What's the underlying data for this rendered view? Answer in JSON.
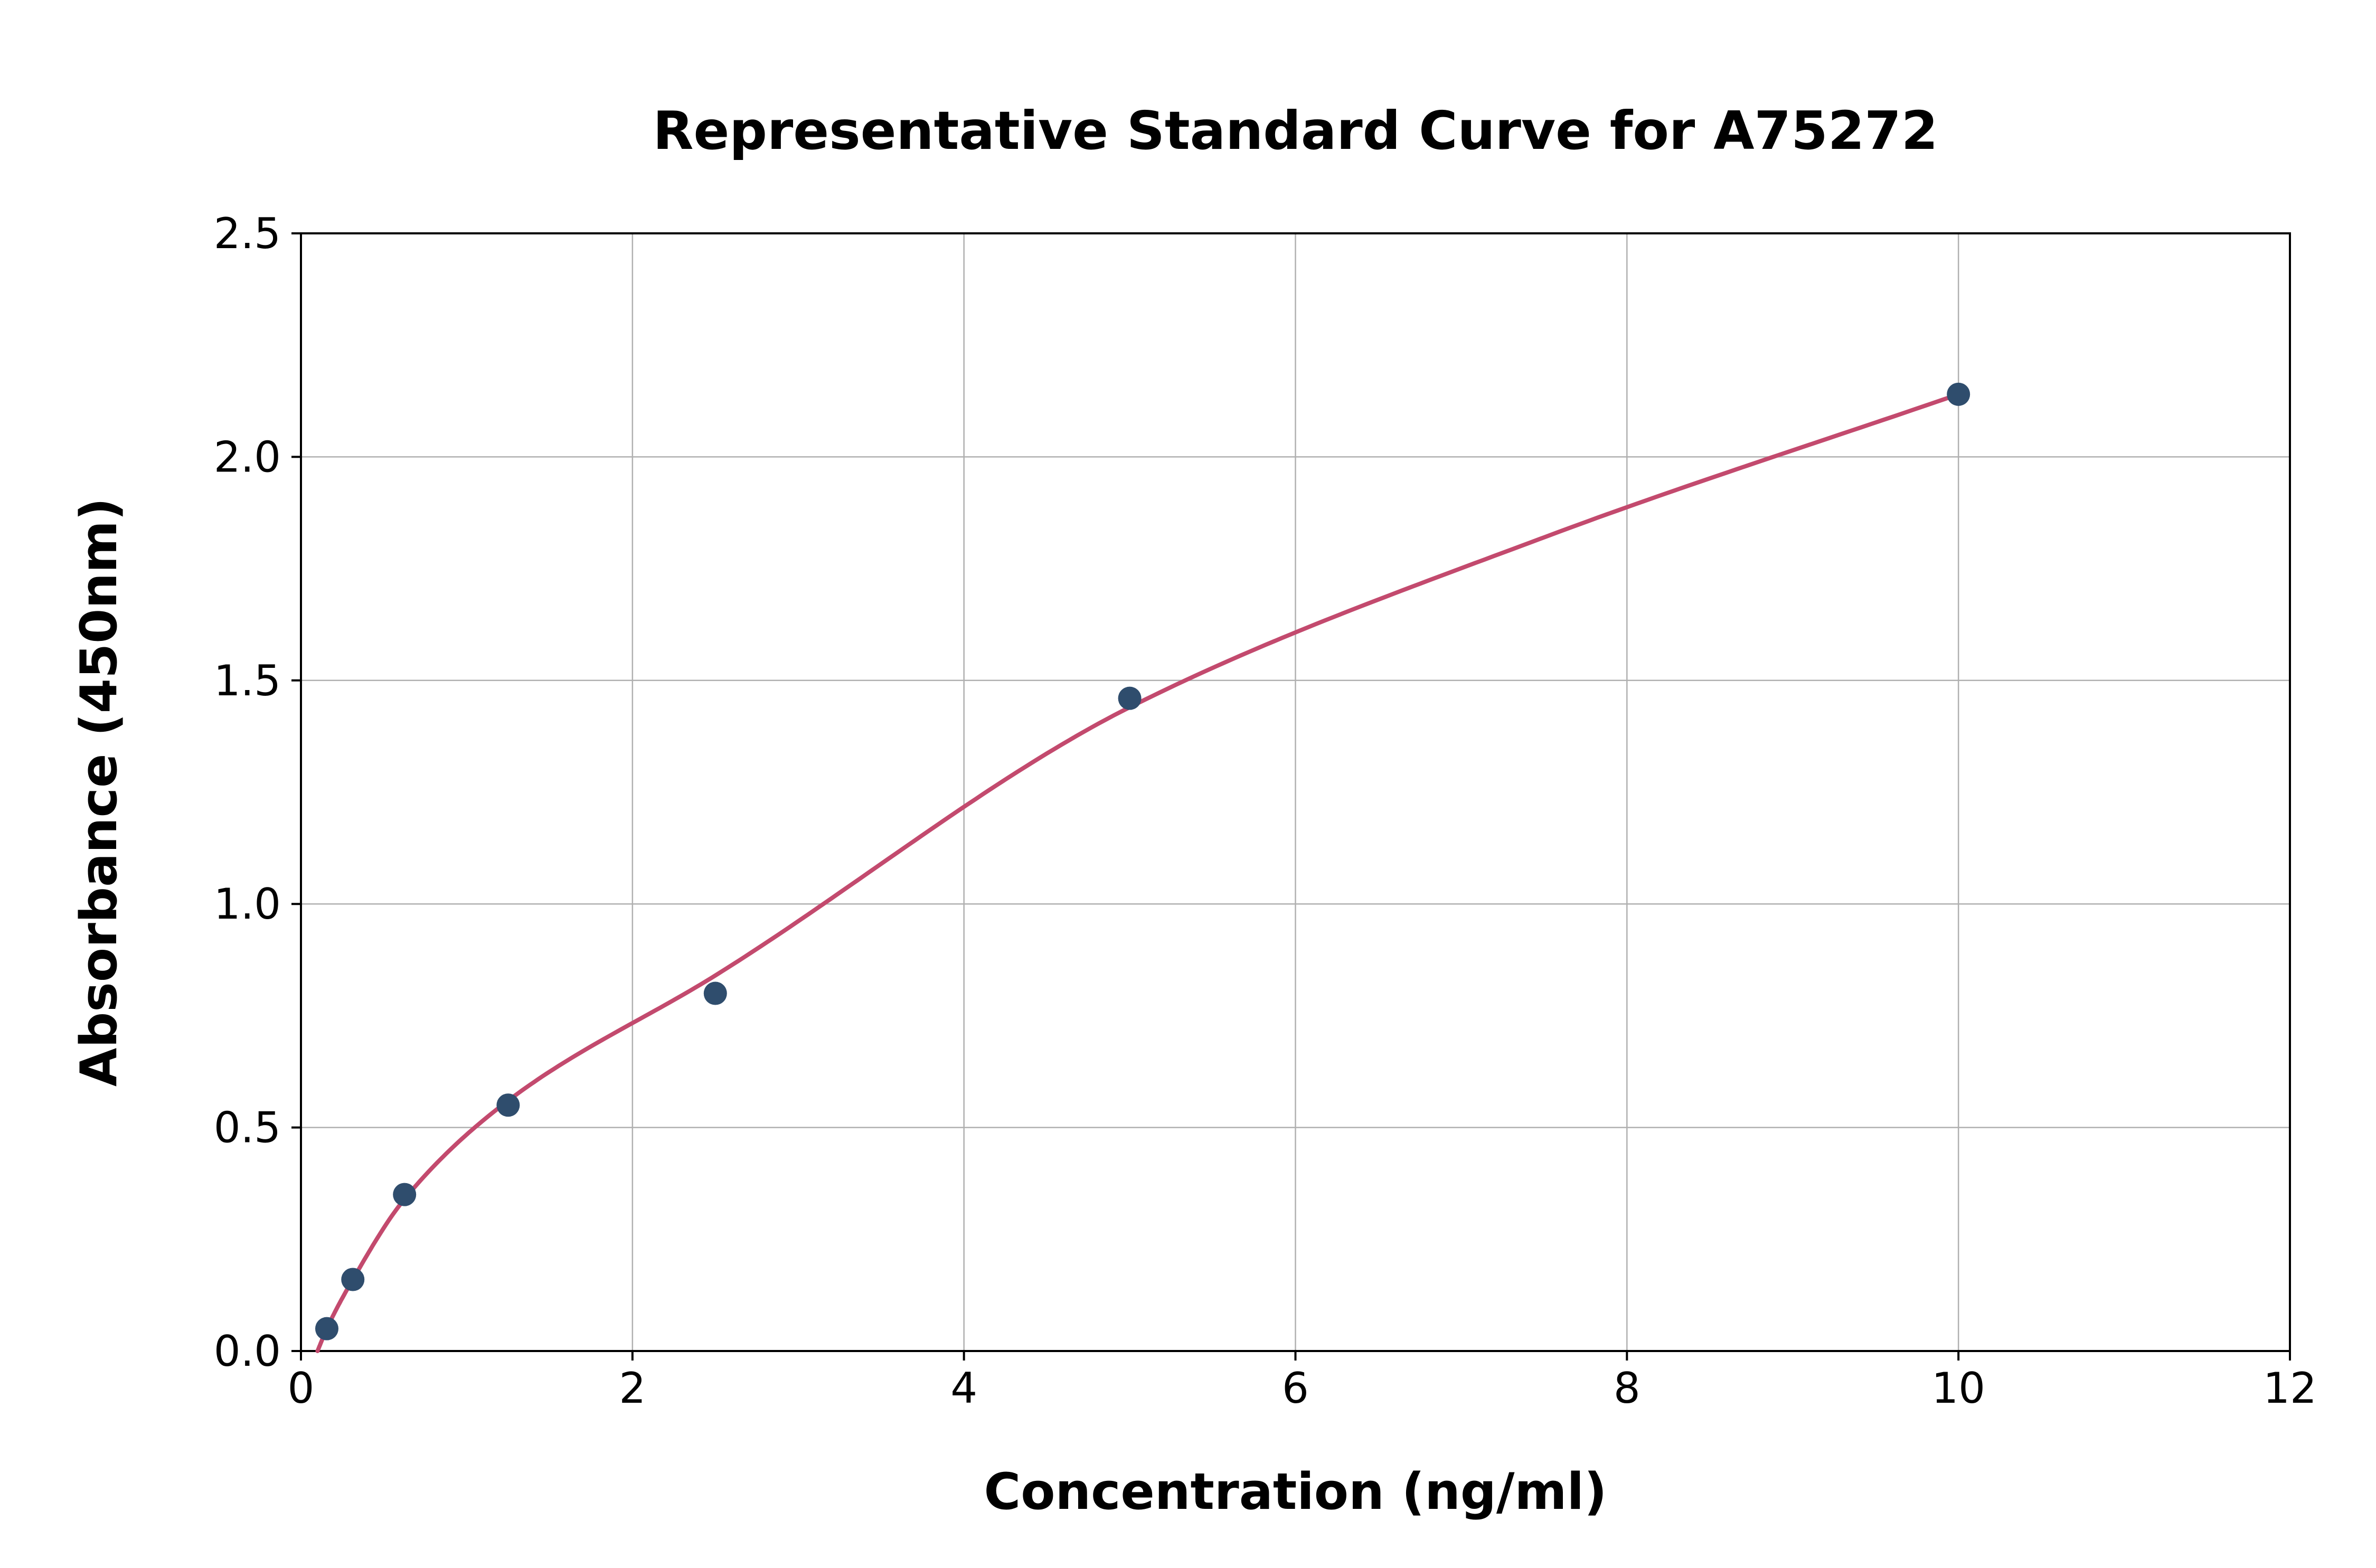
{
  "chart_data": {
    "type": "scatter",
    "title": "Representative Standard Curve for A75272",
    "xlabel": "Concentration (ng/ml)",
    "ylabel": "Absorbance (450nm)",
    "xlim": [
      0,
      12
    ],
    "ylim": [
      0,
      2.5
    ],
    "xticks": [
      0,
      2,
      4,
      6,
      8,
      10,
      12
    ],
    "xtick_labels": [
      "0",
      "2",
      "4",
      "6",
      "8",
      "10",
      "12"
    ],
    "yticks": [
      0,
      0.5,
      1.0,
      1.5,
      2.0,
      2.5
    ],
    "ytick_labels": [
      "0.0",
      "0.5",
      "1.0",
      "1.5",
      "2.0",
      "2.5"
    ],
    "grid": true,
    "legend": "none",
    "points": [
      {
        "x": 0.156,
        "y": 0.05
      },
      {
        "x": 0.313,
        "y": 0.16
      },
      {
        "x": 0.625,
        "y": 0.35
      },
      {
        "x": 1.25,
        "y": 0.55
      },
      {
        "x": 2.5,
        "y": 0.8
      },
      {
        "x": 5,
        "y": 1.46
      },
      {
        "x": 10,
        "y": 2.14
      }
    ],
    "fit_curve": [
      {
        "x": 0.1,
        "y": 0.0
      },
      {
        "x": 0.156,
        "y": 0.05
      },
      {
        "x": 0.313,
        "y": 0.16
      },
      {
        "x": 0.625,
        "y": 0.34
      },
      {
        "x": 1.25,
        "y": 0.56
      },
      {
        "x": 2.5,
        "y": 0.84
      },
      {
        "x": 5,
        "y": 1.44
      },
      {
        "x": 7.5,
        "y": 1.82
      },
      {
        "x": 10,
        "y": 2.14
      }
    ],
    "colors": {
      "point": "#2f4d6d",
      "curve": "#c34a6e",
      "grid": "#b0b0b0",
      "axis": "#000000",
      "background": "#ffffff"
    }
  }
}
